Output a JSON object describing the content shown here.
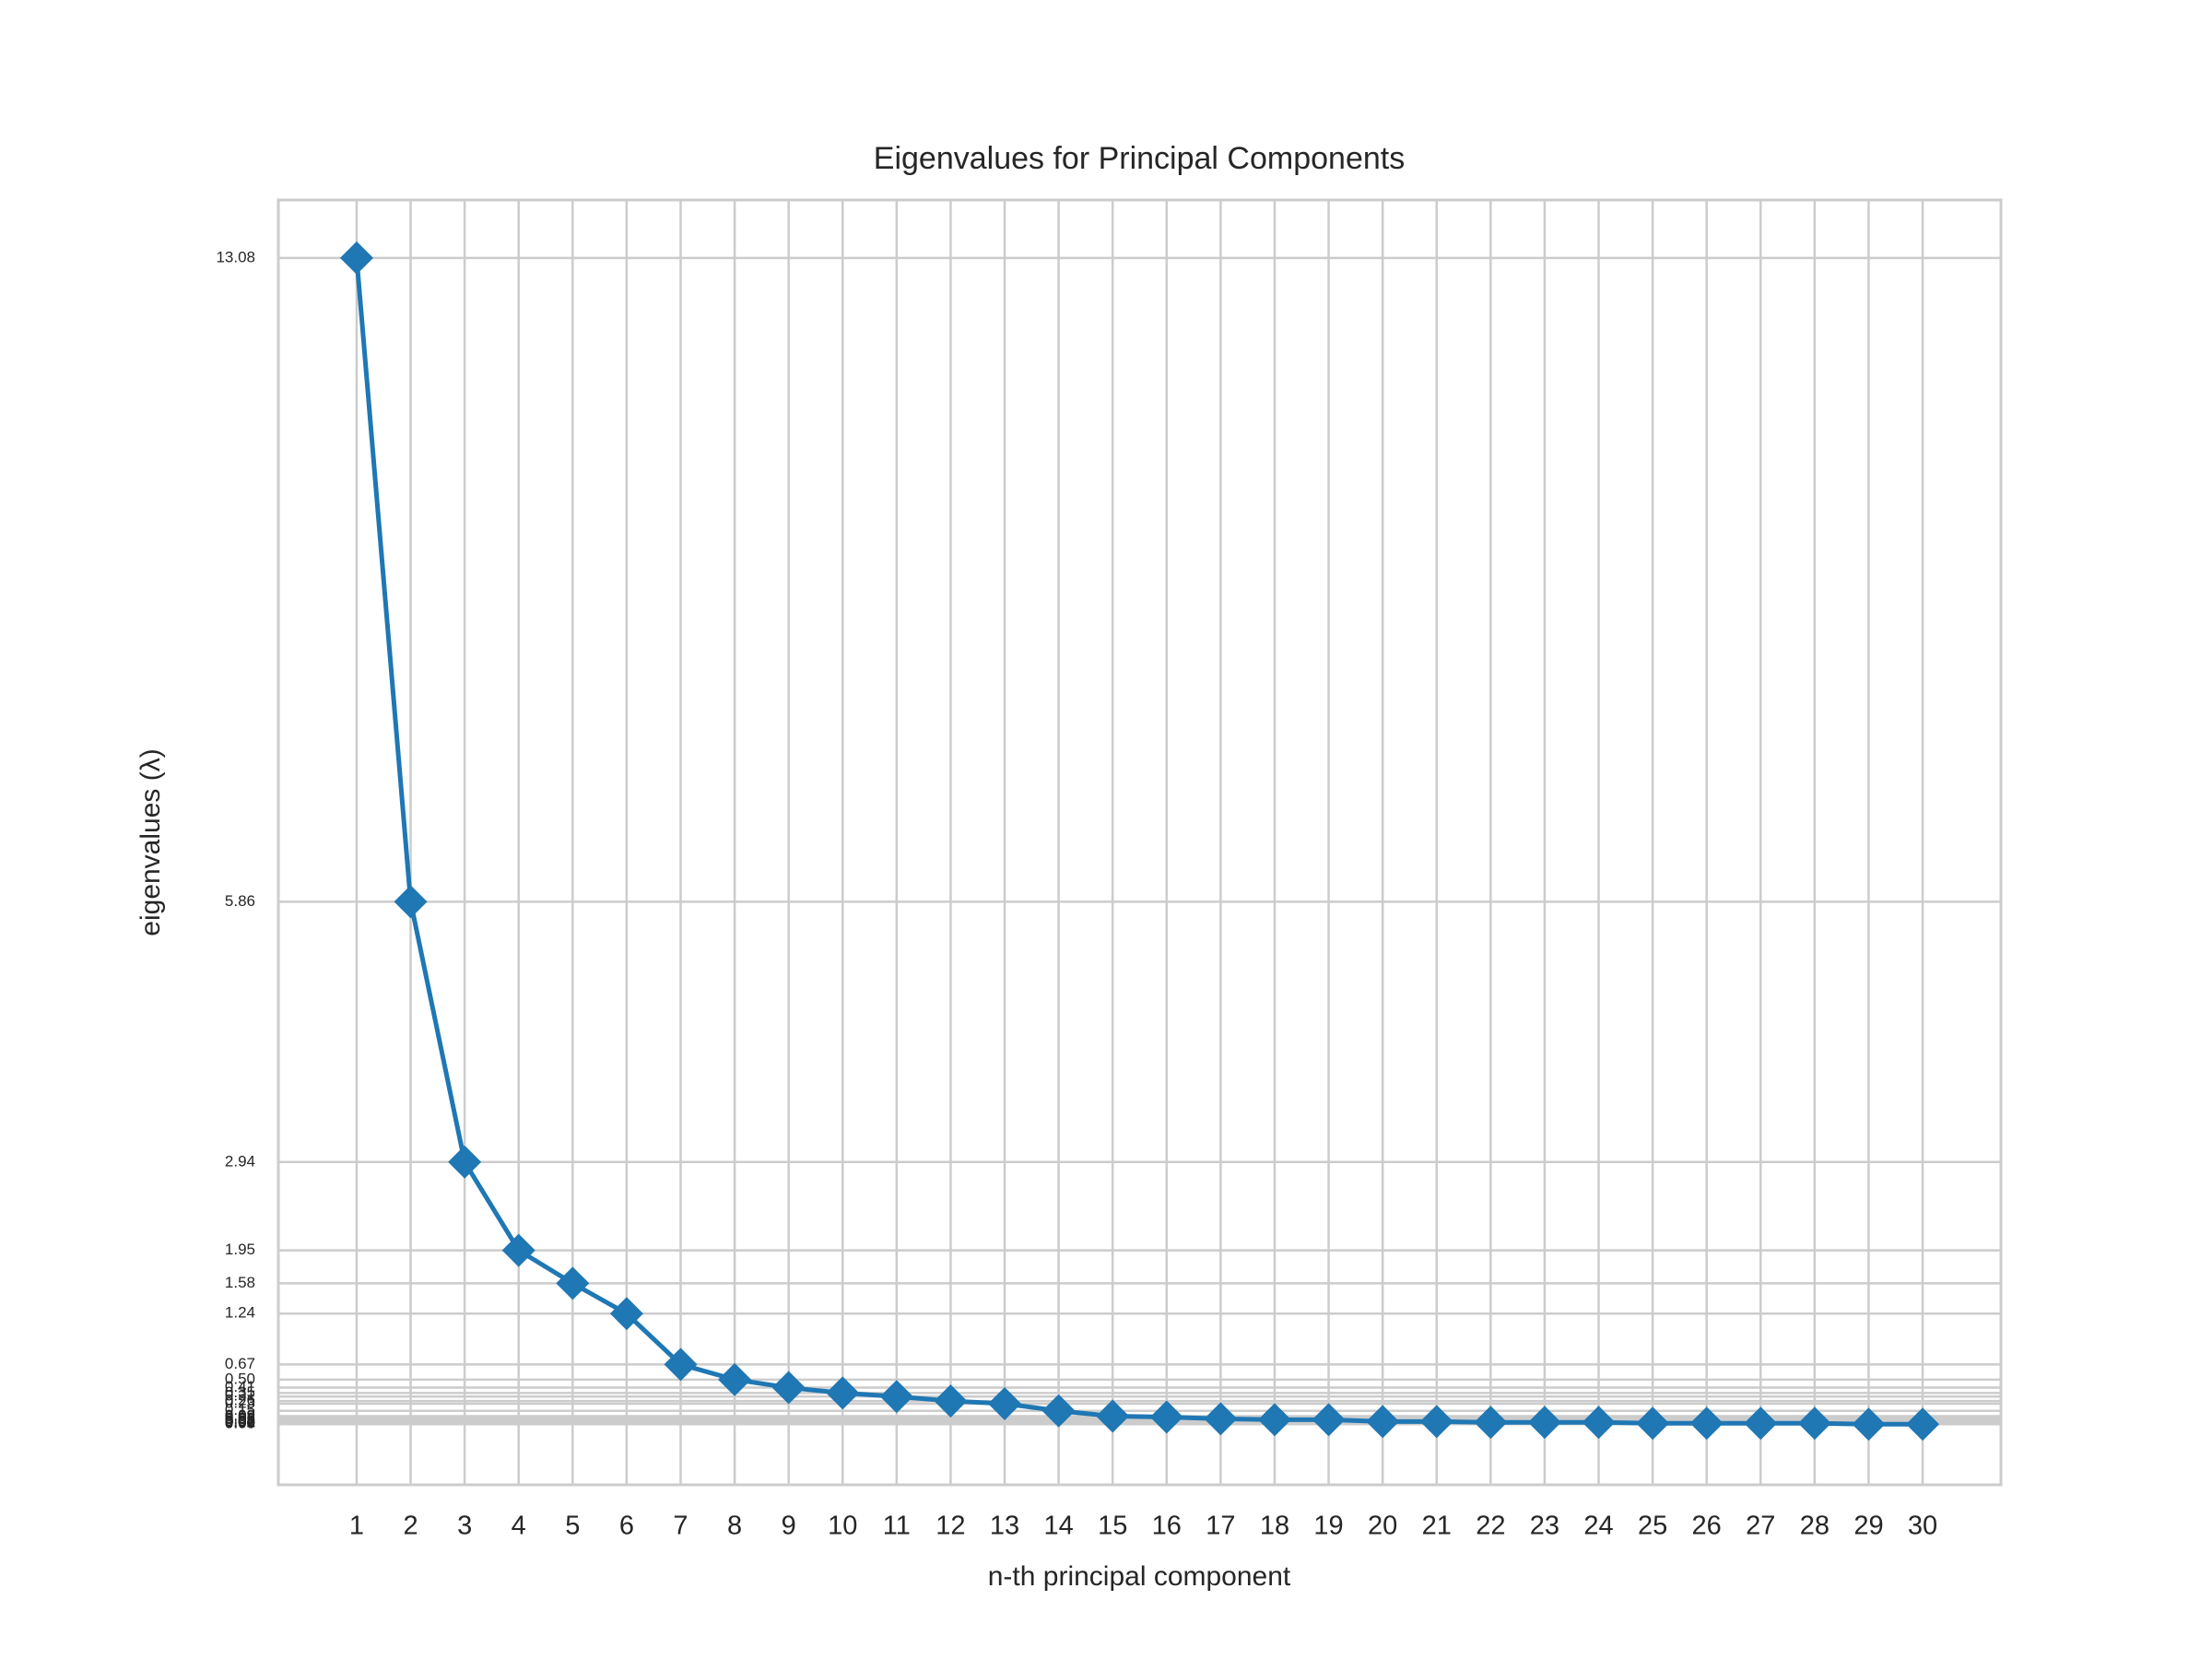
{
  "chart_data": {
    "type": "line",
    "title": "Eigenvalues for Principal Components",
    "xlabel": "n-th principal component",
    "ylabel": "eigenvalues (λ)",
    "x": [
      1,
      2,
      3,
      4,
      5,
      6,
      7,
      8,
      9,
      10,
      11,
      12,
      13,
      14,
      15,
      16,
      17,
      18,
      19,
      20,
      21,
      22,
      23,
      24,
      25,
      26,
      27,
      28,
      29,
      30
    ],
    "series": [
      {
        "name": "eigenvalues",
        "color": "#1f77b4",
        "values": [
          13.08,
          5.86,
          2.94,
          1.95,
          1.58,
          1.24,
          0.67,
          0.5,
          0.41,
          0.35,
          0.31,
          0.26,
          0.23,
          0.15,
          0.09,
          0.08,
          0.06,
          0.05,
          0.05,
          0.03,
          0.03,
          0.02,
          0.02,
          0.02,
          0.01,
          0.01,
          0.01,
          0.01,
          0,
          0
        ]
      }
    ],
    "xlim": [
      -0.45,
      31.45
    ],
    "ylim": [
      -0.68,
      13.73
    ],
    "xticks": [
      1,
      2,
      3,
      4,
      5,
      6,
      7,
      8,
      9,
      10,
      11,
      12,
      13,
      14,
      15,
      16,
      17,
      18,
      19,
      20,
      21,
      22,
      23,
      24,
      25,
      26,
      27,
      28,
      29,
      30
    ],
    "yticks": [
      13.08,
      5.86,
      2.94,
      1.95,
      1.58,
      1.24,
      0.67,
      {
        "value": 0.5,
        "label": "0.50"
      },
      0.41,
      0.35,
      0.31,
      0.26,
      0.23,
      0.15,
      0.09,
      0.08,
      0.06,
      0.05,
      0.05,
      0.03,
      0.03,
      0.02,
      0.02,
      0.02,
      0.01,
      0.01,
      0.01,
      0.01,
      {
        "value": 0,
        "label": "0.00"
      },
      {
        "value": 0,
        "label": "0.00"
      }
    ],
    "grid": true
  }
}
